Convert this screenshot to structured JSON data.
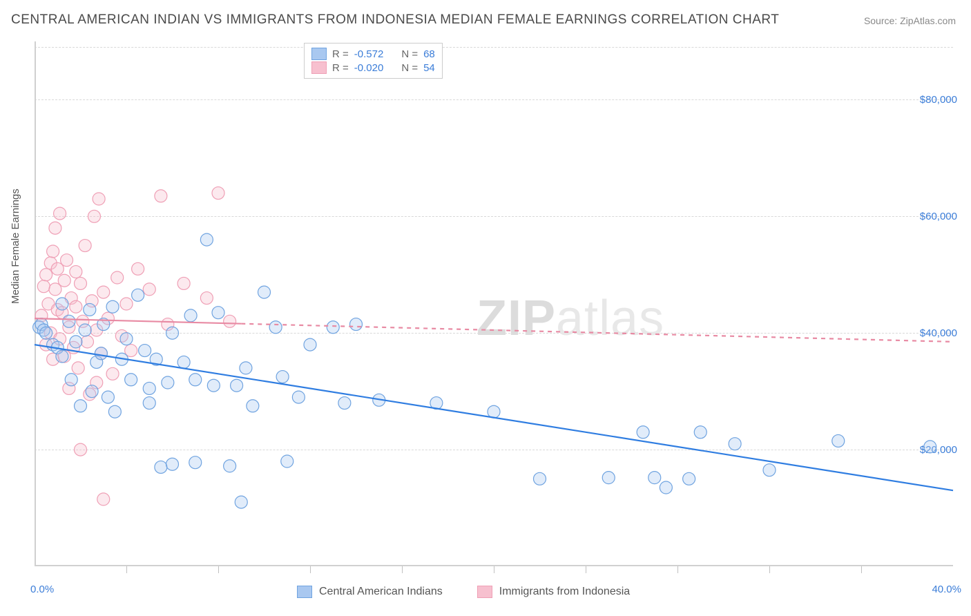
{
  "title": "CENTRAL AMERICAN INDIAN VS IMMIGRANTS FROM INDONESIA MEDIAN FEMALE EARNINGS CORRELATION CHART",
  "source": "Source: ZipAtlas.com",
  "watermark_bold": "ZIP",
  "watermark_light": "atlas",
  "y_axis_label": "Median Female Earnings",
  "chart": {
    "type": "scatter",
    "xlim": [
      0,
      40
    ],
    "ylim": [
      0,
      90000
    ],
    "x_tick_positions": [
      0,
      4,
      8,
      12,
      16,
      20,
      24,
      28,
      32,
      36,
      40
    ],
    "x_tick_labels_shown": {
      "0": "0.0%",
      "40": "40.0%"
    },
    "y_gridlines": [
      20000,
      40000,
      60000,
      80000
    ],
    "y_tick_labels": [
      "$20,000",
      "$40,000",
      "$60,000",
      "$80,000"
    ],
    "grid_color": "#d8d8d8",
    "background_color": "#ffffff",
    "axis_color": "#d0d0d0",
    "marker_radius": 9,
    "marker_stroke_width": 1.2,
    "marker_fill_opacity": 0.35,
    "trend_line_width": 2.2
  },
  "series": [
    {
      "name": "Central American Indians",
      "color_fill": "#a9c8f0",
      "color_stroke": "#6fa3e0",
      "trend_color": "#2f7de1",
      "trend_dash": "none",
      "R": "-0.572",
      "N": "68",
      "trend": {
        "x1": 0,
        "y1": 38000,
        "x2": 40,
        "y2": 13000
      },
      "points": [
        [
          0.2,
          41000
        ],
        [
          0.3,
          41500
        ],
        [
          0.4,
          40500
        ],
        [
          0.5,
          40000
        ],
        [
          0.8,
          38000
        ],
        [
          1.0,
          37500
        ],
        [
          1.2,
          36000
        ],
        [
          1.2,
          45000
        ],
        [
          1.5,
          42000
        ],
        [
          1.6,
          32000
        ],
        [
          1.8,
          38500
        ],
        [
          2.0,
          27500
        ],
        [
          2.2,
          40500
        ],
        [
          2.4,
          44000
        ],
        [
          2.5,
          30000
        ],
        [
          2.7,
          35000
        ],
        [
          2.9,
          36500
        ],
        [
          3.0,
          41500
        ],
        [
          3.2,
          29000
        ],
        [
          3.4,
          44500
        ],
        [
          3.5,
          26500
        ],
        [
          3.8,
          35500
        ],
        [
          4.0,
          39000
        ],
        [
          4.2,
          32000
        ],
        [
          4.5,
          46500
        ],
        [
          4.8,
          37000
        ],
        [
          5.0,
          30500
        ],
        [
          5.0,
          28000
        ],
        [
          5.3,
          35500
        ],
        [
          5.5,
          17000
        ],
        [
          5.8,
          31500
        ],
        [
          6.0,
          40000
        ],
        [
          6.0,
          17500
        ],
        [
          6.5,
          35000
        ],
        [
          6.8,
          43000
        ],
        [
          7.0,
          32000
        ],
        [
          7.0,
          17800
        ],
        [
          7.5,
          56000
        ],
        [
          7.8,
          31000
        ],
        [
          8.0,
          43500
        ],
        [
          8.5,
          17200
        ],
        [
          8.8,
          31000
        ],
        [
          9.0,
          11000
        ],
        [
          9.2,
          34000
        ],
        [
          9.5,
          27500
        ],
        [
          10.0,
          47000
        ],
        [
          10.5,
          41000
        ],
        [
          10.8,
          32500
        ],
        [
          11.0,
          18000
        ],
        [
          11.5,
          29000
        ],
        [
          12.0,
          38000
        ],
        [
          13.0,
          41000
        ],
        [
          13.5,
          28000
        ],
        [
          14.0,
          41500
        ],
        [
          15.0,
          28500
        ],
        [
          17.5,
          28000
        ],
        [
          20.0,
          26500
        ],
        [
          22.0,
          15000
        ],
        [
          25.0,
          15200
        ],
        [
          26.5,
          23000
        ],
        [
          27.0,
          15200
        ],
        [
          27.5,
          13500
        ],
        [
          28.5,
          15000
        ],
        [
          29.0,
          23000
        ],
        [
          30.5,
          21000
        ],
        [
          32.0,
          16500
        ],
        [
          35.0,
          21500
        ],
        [
          39.0,
          20500
        ]
      ]
    },
    {
      "name": "Immigrants from Indonesia",
      "color_fill": "#f7c0cf",
      "color_stroke": "#ef9fb5",
      "trend_color": "#e88aa3",
      "trend_dash": "6,6",
      "R": "-0.020",
      "N": "54",
      "trend": {
        "x1": 0,
        "y1": 42500,
        "x2": 40,
        "y2": 38500
      },
      "trend_solid_until": 9,
      "points": [
        [
          0.3,
          43000
        ],
        [
          0.4,
          48000
        ],
        [
          0.5,
          50000
        ],
        [
          0.5,
          38000
        ],
        [
          0.6,
          45000
        ],
        [
          0.7,
          52000
        ],
        [
          0.7,
          40000
        ],
        [
          0.8,
          54000
        ],
        [
          0.8,
          35500
        ],
        [
          0.9,
          47500
        ],
        [
          0.9,
          58000
        ],
        [
          1.0,
          44000
        ],
        [
          1.0,
          51000
        ],
        [
          1.1,
          39000
        ],
        [
          1.1,
          60500
        ],
        [
          1.2,
          43500
        ],
        [
          1.3,
          49000
        ],
        [
          1.3,
          36000
        ],
        [
          1.4,
          52500
        ],
        [
          1.5,
          41000
        ],
        [
          1.5,
          30500
        ],
        [
          1.6,
          46000
        ],
        [
          1.7,
          37500
        ],
        [
          1.8,
          44500
        ],
        [
          1.8,
          50500
        ],
        [
          1.9,
          34000
        ],
        [
          2.0,
          48500
        ],
        [
          2.0,
          20000
        ],
        [
          2.1,
          42000
        ],
        [
          2.2,
          55000
        ],
        [
          2.3,
          38500
        ],
        [
          2.4,
          29500
        ],
        [
          2.5,
          45500
        ],
        [
          2.6,
          60000
        ],
        [
          2.7,
          40500
        ],
        [
          2.7,
          31500
        ],
        [
          2.8,
          63000
        ],
        [
          2.9,
          36500
        ],
        [
          3.0,
          47000
        ],
        [
          3.0,
          11500
        ],
        [
          3.2,
          42500
        ],
        [
          3.4,
          33000
        ],
        [
          3.6,
          49500
        ],
        [
          3.8,
          39500
        ],
        [
          4.0,
          45000
        ],
        [
          4.2,
          37000
        ],
        [
          4.5,
          51000
        ],
        [
          5.0,
          47500
        ],
        [
          5.5,
          63500
        ],
        [
          5.8,
          41500
        ],
        [
          6.5,
          48500
        ],
        [
          7.5,
          46000
        ],
        [
          8.0,
          64000
        ],
        [
          8.5,
          42000
        ]
      ]
    }
  ],
  "legend_top": {
    "R_label": "R =",
    "N_label": "N ="
  },
  "legend_bottom": {
    "label1": "Central American Indians",
    "label2": "Immigrants from Indonesia"
  }
}
